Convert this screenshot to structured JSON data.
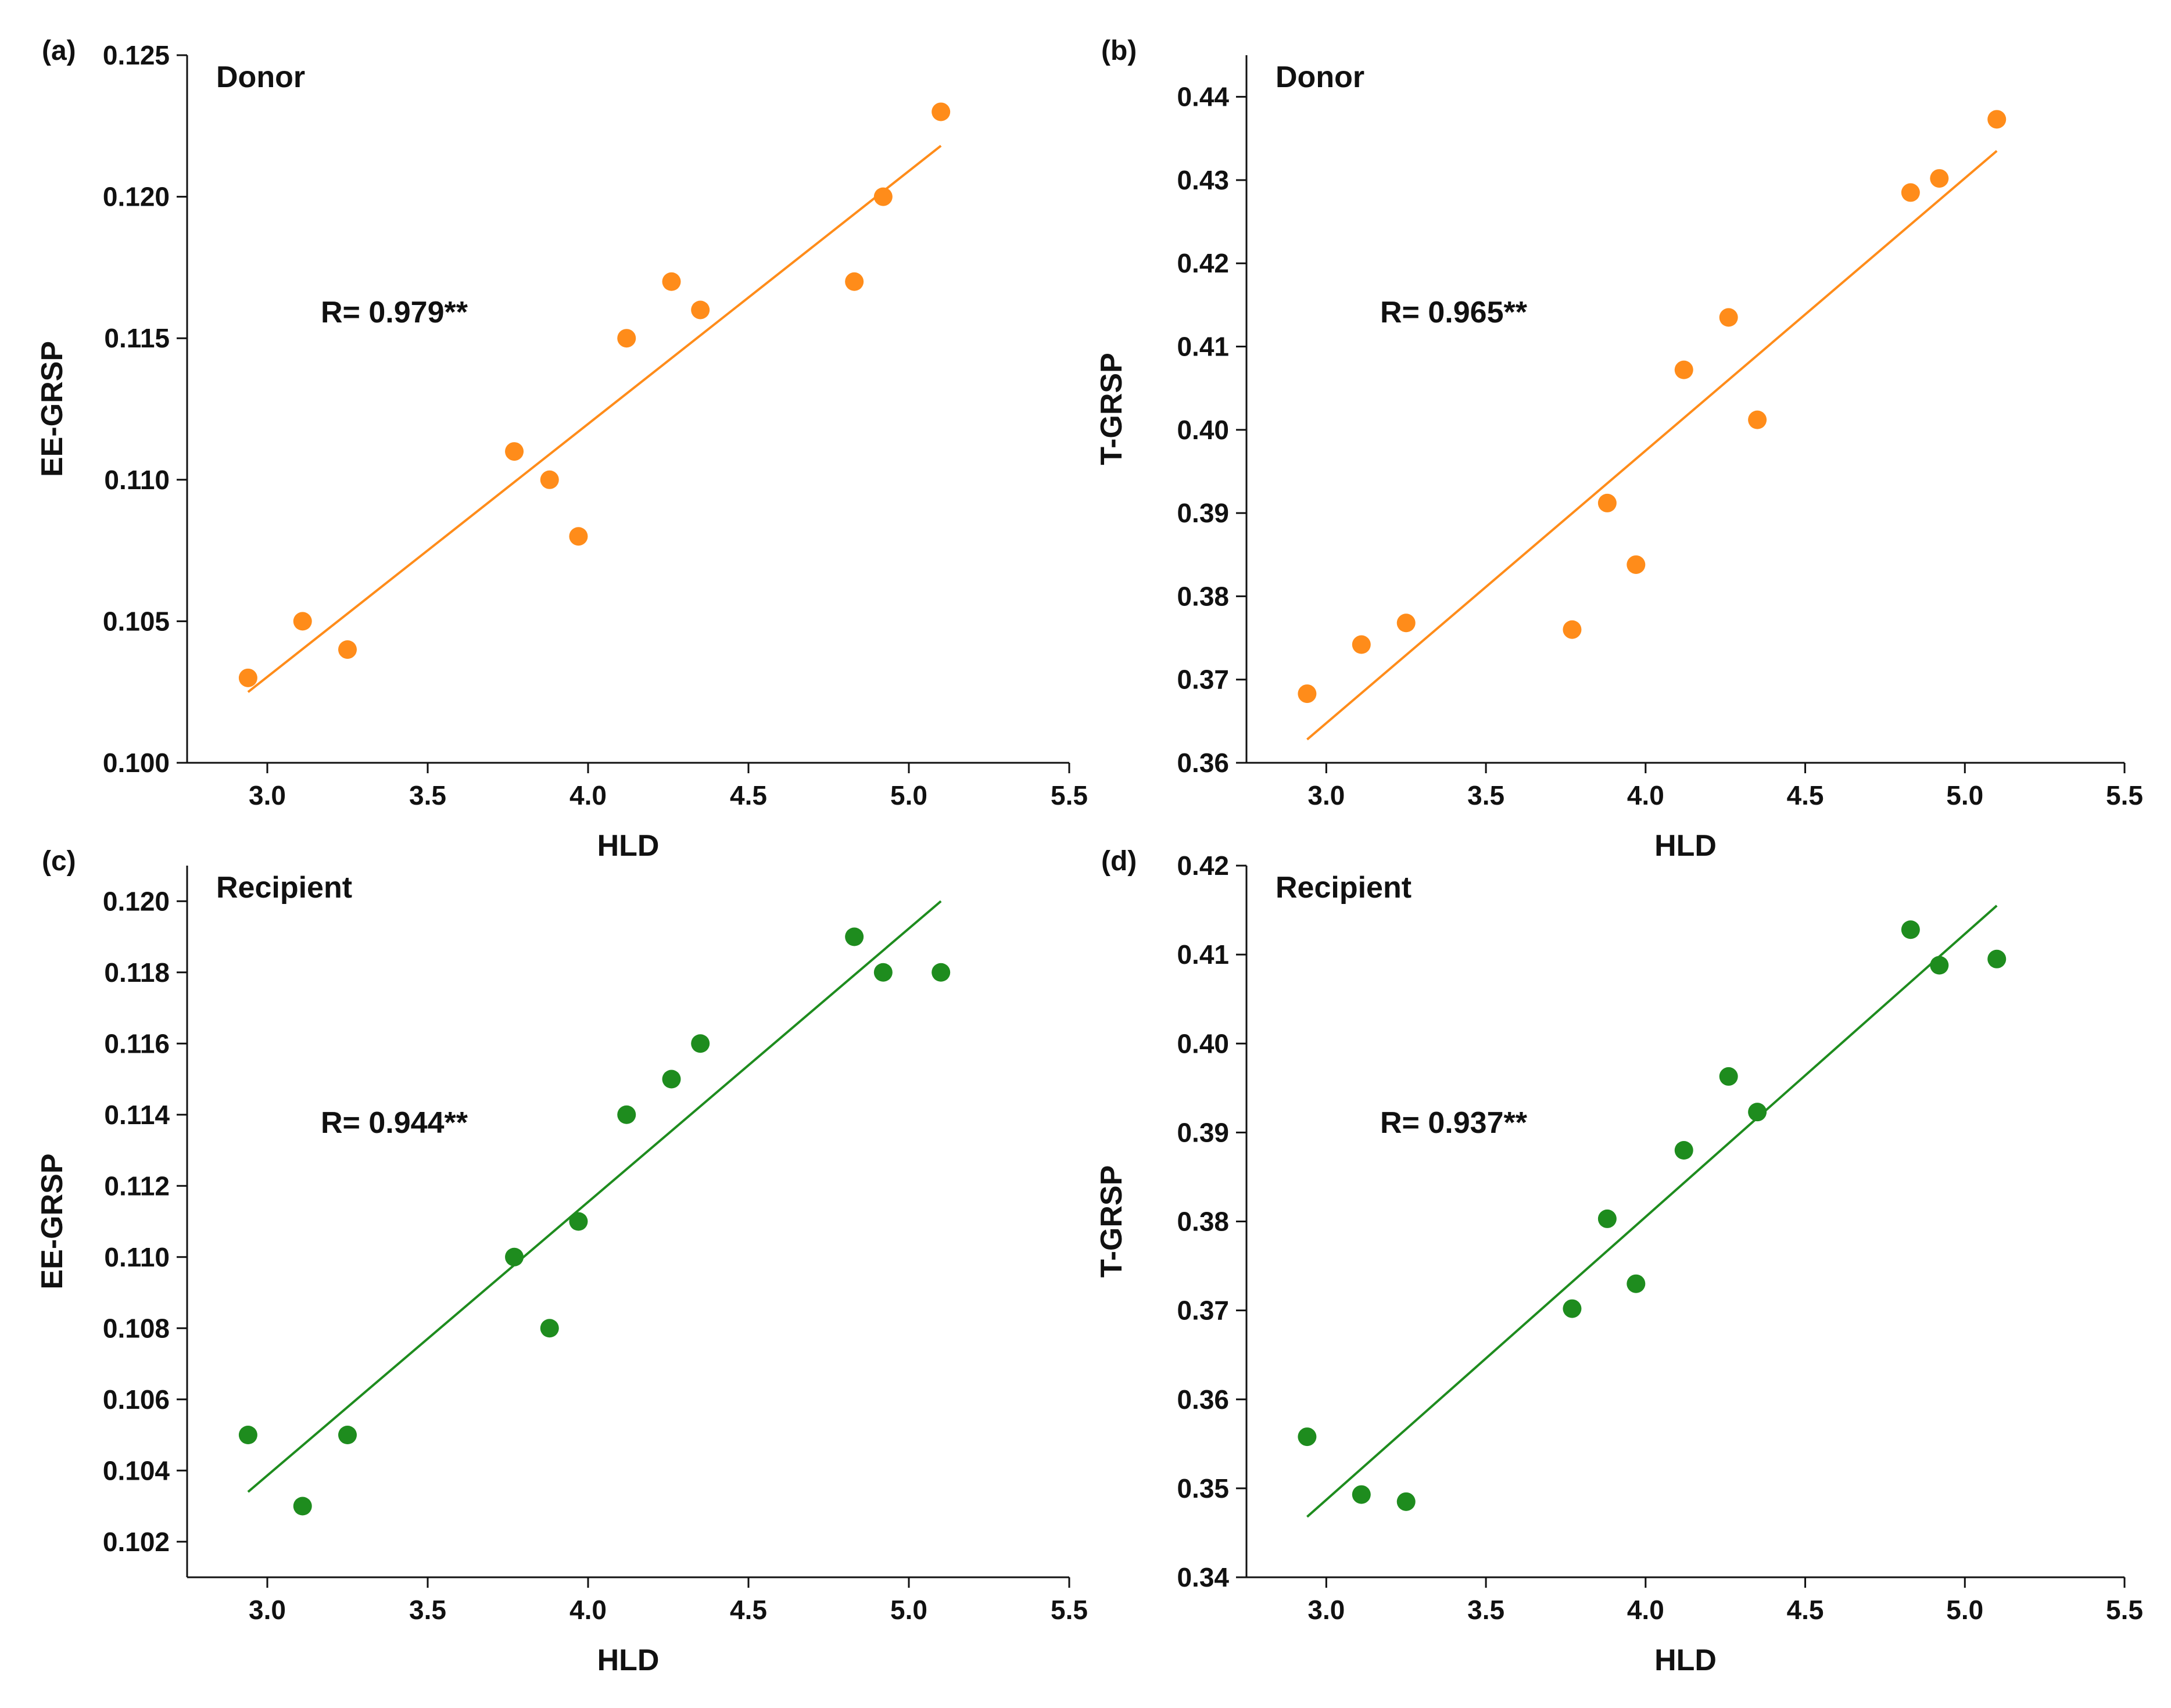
{
  "colors": {
    "donor": "#FF8C1A",
    "recipient": "#1E8C1E",
    "axis": "#111111"
  },
  "chart_data": [
    {
      "type": "scatter",
      "panel": "(a)",
      "group": "Donor",
      "annotation": "R= 0.979**",
      "xlabel": "HLD",
      "ylabel": "EE-GRSP",
      "xlim": [
        2.75,
        5.5
      ],
      "ylim": [
        0.1,
        0.125
      ],
      "xticks": [
        3.0,
        3.5,
        4.0,
        4.5,
        5.0,
        5.5
      ],
      "xtick_labels": [
        "3.0",
        "3.5",
        "4.0",
        "4.5",
        "5.0",
        "5.5"
      ],
      "yticks": [
        0.1,
        0.105,
        0.11,
        0.115,
        0.12,
        0.125
      ],
      "ytick_labels": [
        "0.100",
        "0.105",
        "0.110",
        "0.115",
        "0.120",
        "0.125"
      ],
      "color_key": "donor",
      "x": [
        2.94,
        3.11,
        3.25,
        3.77,
        3.88,
        3.97,
        4.12,
        4.26,
        4.35,
        4.83,
        4.92,
        5.1
      ],
      "y": [
        0.103,
        0.105,
        0.104,
        0.111,
        0.11,
        0.108,
        0.115,
        0.117,
        0.116,
        0.117,
        0.12,
        0.123
      ],
      "fit_line": {
        "x": [
          2.94,
          5.1
        ],
        "y": [
          0.1025,
          0.1218
        ]
      }
    },
    {
      "type": "scatter",
      "panel": "(b)",
      "group": "Donor",
      "annotation": "R= 0.965**",
      "xlabel": "HLD",
      "ylabel": "T-GRSP",
      "xlim": [
        2.75,
        5.5
      ],
      "ylim": [
        0.36,
        0.445
      ],
      "xticks": [
        3.0,
        3.5,
        4.0,
        4.5,
        5.0,
        5.5
      ],
      "xtick_labels": [
        "3.0",
        "3.5",
        "4.0",
        "4.5",
        "5.0",
        "5.5"
      ],
      "yticks": [
        0.36,
        0.37,
        0.38,
        0.39,
        0.4,
        0.41,
        0.42,
        0.43,
        0.44
      ],
      "ytick_labels": [
        "0.36",
        "0.37",
        "0.38",
        "0.39",
        "0.40",
        "0.41",
        "0.42",
        "0.43",
        "0.44"
      ],
      "color_key": "donor",
      "x": [
        2.94,
        3.11,
        3.25,
        3.77,
        3.88,
        3.97,
        4.12,
        4.26,
        4.35,
        4.83,
        4.92,
        5.1
      ],
      "y": [
        0.3683,
        0.3742,
        0.3768,
        0.376,
        0.3912,
        0.3838,
        0.4072,
        0.4135,
        0.4012,
        0.4285,
        0.4302,
        0.4373
      ],
      "fit_line": {
        "x": [
          2.94,
          5.1
        ],
        "y": [
          0.3628,
          0.4335
        ]
      }
    },
    {
      "type": "scatter",
      "panel": "(c)",
      "group": "Recipient",
      "annotation": "R= 0.944**",
      "xlabel": "HLD",
      "ylabel": "EE-GRSP",
      "xlim": [
        2.75,
        5.5
      ],
      "ylim": [
        0.101,
        0.121
      ],
      "xticks": [
        3.0,
        3.5,
        4.0,
        4.5,
        5.0,
        5.5
      ],
      "xtick_labels": [
        "3.0",
        "3.5",
        "4.0",
        "4.5",
        "5.0",
        "5.5"
      ],
      "yticks": [
        0.102,
        0.104,
        0.106,
        0.108,
        0.11,
        0.112,
        0.114,
        0.116,
        0.118,
        0.12
      ],
      "ytick_labels": [
        "0.102",
        "0.104",
        "0.106",
        "0.108",
        "0.110",
        "0.112",
        "0.114",
        "0.116",
        "0.118",
        "0.120"
      ],
      "color_key": "recipient",
      "x": [
        2.94,
        3.11,
        3.25,
        3.77,
        3.88,
        3.97,
        4.12,
        4.26,
        4.35,
        4.83,
        4.92,
        5.1
      ],
      "y": [
        0.105,
        0.103,
        0.105,
        0.11,
        0.108,
        0.111,
        0.114,
        0.115,
        0.116,
        0.119,
        0.118,
        0.118
      ],
      "fit_line": {
        "x": [
          2.94,
          5.1
        ],
        "y": [
          0.1034,
          0.12
        ]
      }
    },
    {
      "type": "scatter",
      "panel": "(d)",
      "group": "Recipient",
      "annotation": "R= 0.937**",
      "xlabel": "HLD",
      "ylabel": "T-GRSP",
      "xlim": [
        2.75,
        5.5
      ],
      "ylim": [
        0.34,
        0.42
      ],
      "xticks": [
        3.0,
        3.5,
        4.0,
        4.5,
        5.0,
        5.5
      ],
      "xtick_labels": [
        "3.0",
        "3.5",
        "4.0",
        "4.5",
        "5.0",
        "5.5"
      ],
      "yticks": [
        0.34,
        0.35,
        0.36,
        0.37,
        0.38,
        0.39,
        0.4,
        0.41,
        0.42
      ],
      "ytick_labels": [
        "0.34",
        "0.35",
        "0.36",
        "0.37",
        "0.38",
        "0.39",
        "0.40",
        "0.41",
        "0.42"
      ],
      "color_key": "recipient",
      "x": [
        2.94,
        3.11,
        3.25,
        3.77,
        3.88,
        3.97,
        4.12,
        4.26,
        4.35,
        4.83,
        4.92,
        5.1
      ],
      "y": [
        0.3558,
        0.3493,
        0.3485,
        0.3702,
        0.3803,
        0.373,
        0.388,
        0.3963,
        0.3923,
        0.4128,
        0.4088,
        0.4095
      ],
      "fit_line": {
        "x": [
          2.94,
          5.1
        ],
        "y": [
          0.3468,
          0.4155
        ]
      }
    }
  ]
}
